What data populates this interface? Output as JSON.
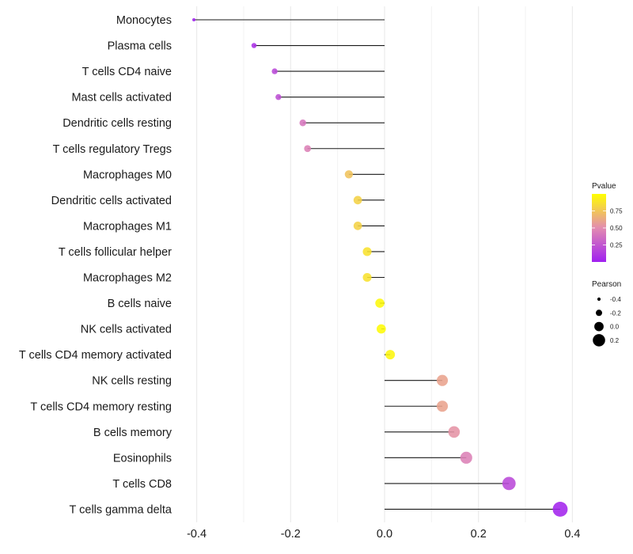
{
  "chart_data": {
    "type": "lollipop",
    "title": "",
    "xlabel": "",
    "ylabel": "",
    "xlim": [
      -0.43,
      0.43
    ],
    "x_ticks": [
      -0.4,
      -0.2,
      0.0,
      0.2,
      0.4
    ],
    "x_tick_labels": [
      "-0.4",
      "-0.2",
      "0.0",
      "0.2",
      "0.4"
    ],
    "x_minor_ticks": [
      -0.3,
      -0.1,
      0.1,
      0.3
    ],
    "grid": true,
    "categories": [
      "Monocytes",
      "Plasma cells",
      "T cells CD4 naive",
      "Mast cells activated",
      "Dendritic cells resting",
      "T cells regulatory  Tregs ",
      "Macrophages M0",
      "Dendritic cells activated",
      "Macrophages M1",
      "T cells follicular helper",
      "Macrophages M2",
      "B cells naive",
      "NK cells activated",
      "T cells CD4 memory activated",
      "NK cells resting",
      "T cells CD4 memory resting",
      "B cells memory",
      "Eosinophils",
      "T cells CD8",
      "T cells gamma delta"
    ],
    "series": [
      {
        "name": "Pearson",
        "values": [
          -0.406,
          -0.278,
          -0.234,
          -0.226,
          -0.174,
          -0.164,
          -0.076,
          -0.057,
          -0.057,
          -0.037,
          -0.037,
          -0.01,
          -0.007,
          0.012,
          0.123,
          0.123,
          0.148,
          0.174,
          0.265,
          0.374
        ]
      },
      {
        "name": "Pvalue",
        "values": [
          0.01,
          0.08,
          0.19,
          0.22,
          0.4,
          0.45,
          0.74,
          0.8,
          0.8,
          0.87,
          0.87,
          0.97,
          0.98,
          0.96,
          0.6,
          0.6,
          0.53,
          0.45,
          0.19,
          0.02
        ]
      }
    ],
    "legends": {
      "color": {
        "title": "Pvalue",
        "ticks": [
          0.25,
          0.5,
          0.75
        ],
        "tick_labels": [
          "0.25",
          "0.50",
          "0.75"
        ],
        "range": [
          0.0,
          1.0
        ],
        "low_color": "#A020F0",
        "mid_color": "#E38CB0",
        "high_color": "#FFFF00",
        "placement": "right"
      },
      "size": {
        "title": "Pearson",
        "values": [
          -0.4,
          -0.2,
          0.0,
          0.2
        ],
        "labels": [
          "-0.4",
          "-0.2",
          "0.0",
          "0.2"
        ],
        "placement": "right"
      }
    }
  }
}
